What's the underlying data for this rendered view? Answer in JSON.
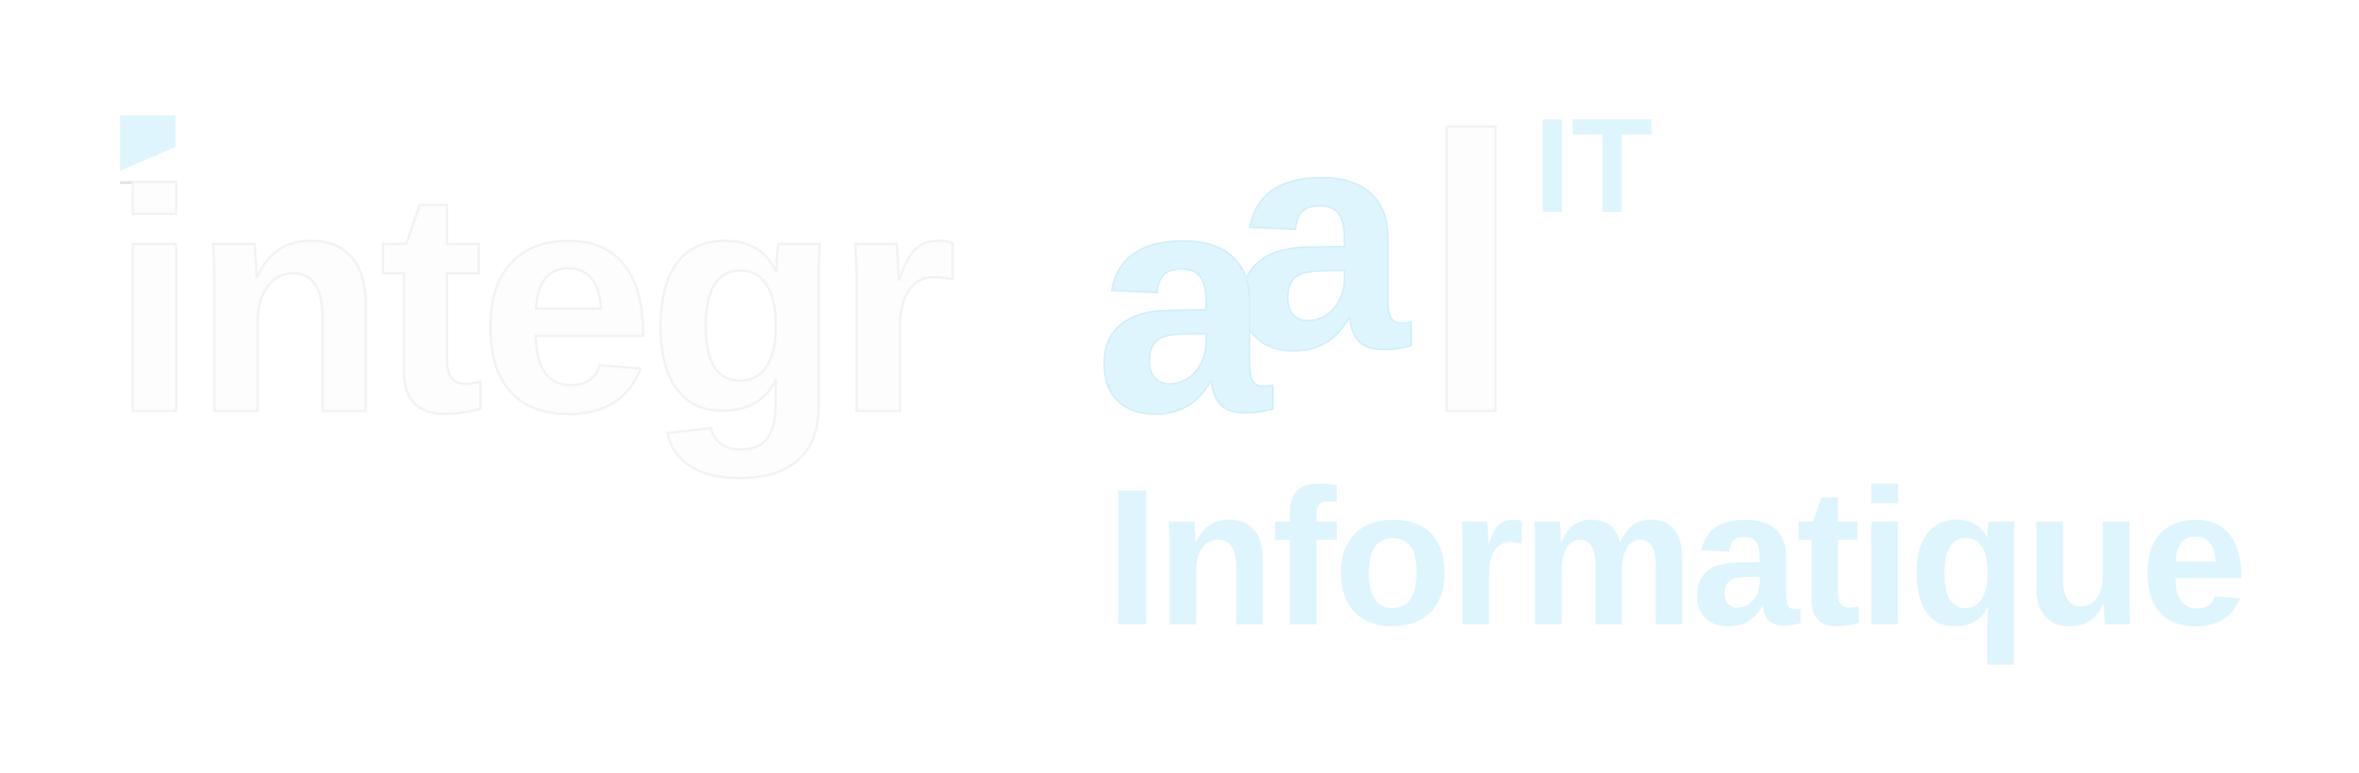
{
  "logo": {
    "wordmark": "integraal",
    "superscript": "IT",
    "tagline": "Informatique",
    "colors": {
      "background": "#ffffff",
      "light_letters": "#fdfdfd",
      "letter_outline": "#f1f3f4",
      "accent": "#dff5fd",
      "accent_edge": "#d2eefa"
    }
  }
}
